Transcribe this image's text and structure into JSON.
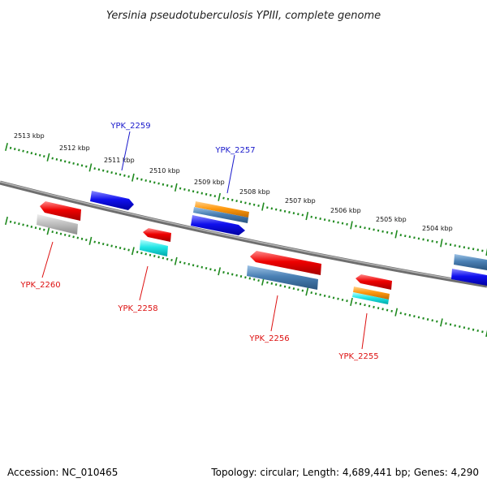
{
  "title": "Yersinia pseudotuberculosis YPIII, complete genome",
  "footer": {
    "accession": "Accession: NC_010465",
    "summary": "Topology: circular; Length: 4,689,441 bp; Genes: 4,290"
  },
  "colors": {
    "backbone": "#8a8a8a",
    "ticks": "#1f8a1f",
    "forward_label": "#1a1acc",
    "reverse_label": "#dd1111"
  },
  "scale_labels": [
    "2513 kbp",
    "2512 kbp",
    "2511 kbp",
    "2510 kbp",
    "2509 kbp",
    "2508 kbp",
    "2507 kbp",
    "2506 kbp",
    "2505 kbp",
    "2504 kbp"
  ],
  "genes": [
    {
      "id": "YPK_2259",
      "strand": "forward"
    },
    {
      "id": "YPK_2257",
      "strand": "forward"
    },
    {
      "id": "YPK_2260",
      "strand": "reverse"
    },
    {
      "id": "YPK_2258",
      "strand": "reverse"
    },
    {
      "id": "YPK_2256",
      "strand": "reverse"
    },
    {
      "id": "YPK_2255",
      "strand": "reverse"
    }
  ]
}
